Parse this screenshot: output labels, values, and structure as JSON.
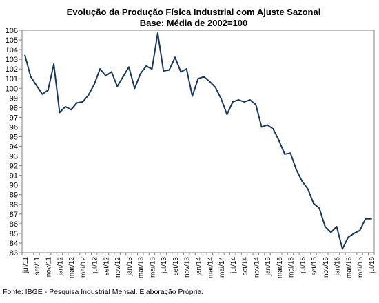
{
  "chart_data": {
    "type": "line",
    "title": "Evolução da Produção Física Industrial com Ajuste Sazonal",
    "subtitle": "Base: Média de 2002=100",
    "xlabel": "",
    "ylabel": "",
    "ylim": [
      83,
      106
    ],
    "y_ticks": [
      83,
      84,
      85,
      86,
      87,
      88,
      89,
      90,
      91,
      92,
      93,
      94,
      95,
      96,
      97,
      98,
      99,
      100,
      101,
      102,
      103,
      104,
      105,
      106
    ],
    "grid": false,
    "legend": "none",
    "x": [
      "jul/11",
      "ago/11",
      "set/11",
      "out/11",
      "nov/11",
      "dez/11",
      "jan/12",
      "fev/12",
      "mar/12",
      "abr/12",
      "mai/12",
      "jun/12",
      "jul/12",
      "ago/12",
      "set/12",
      "out/12",
      "nov/12",
      "dez/12",
      "jan/13",
      "fev/13",
      "mar/13",
      "abr/13",
      "mai/13",
      "jun/13",
      "jul/13",
      "ago/13",
      "set/13",
      "out/13",
      "nov/13",
      "dez/13",
      "jan/14",
      "fev/14",
      "mar/14",
      "abr/14",
      "mai/14",
      "jun/14",
      "jul/14",
      "ago/14",
      "set/14",
      "out/14",
      "nov/14",
      "dez/14",
      "jan/15",
      "fev/15",
      "mar/15",
      "abr/15",
      "mai/15",
      "jun/15",
      "jul/15",
      "ago/15",
      "set/15",
      "out/15",
      "nov/15",
      "dez/15",
      "jan/16",
      "fev/16",
      "mar/16",
      "abr/16",
      "mai/16",
      "jun/16",
      "jul/16"
    ],
    "x_tick_labels": [
      "jul/11",
      "set/11",
      "nov/11",
      "jan/12",
      "mar/12",
      "mai/12",
      "jul/12",
      "set/12",
      "nov/12",
      "jan/13",
      "mar/13",
      "mai/13",
      "jul/13",
      "set/13",
      "nov/13",
      "jan/14",
      "mar/14",
      "mai/14",
      "jul/14",
      "set/14",
      "nov/14",
      "jan/15",
      "mar/15",
      "mai/15",
      "jul/15",
      "set/15",
      "nov/15",
      "jan/16",
      "mar/16",
      "mai/16",
      "jul/16"
    ],
    "series": [
      {
        "values": [
          103.4,
          101.2,
          100.3,
          99.4,
          99.8,
          102.5,
          97.5,
          98.1,
          97.8,
          98.5,
          98.6,
          99.3,
          100.4,
          102.0,
          101.3,
          101.7,
          100.2,
          101.2,
          102.2,
          100.0,
          101.5,
          102.3,
          102.0,
          105.7,
          101.8,
          101.9,
          103.2,
          101.7,
          102.0,
          99.2,
          101.0,
          101.2,
          100.7,
          100.1,
          98.9,
          97.3,
          98.6,
          98.8,
          98.6,
          98.8,
          98.3,
          96.0,
          96.2,
          95.8,
          94.6,
          93.2,
          93.3,
          91.6,
          90.4,
          89.6,
          88.1,
          87.6,
          85.7,
          85.1,
          85.7,
          83.4,
          84.6,
          85.0,
          85.3,
          86.5,
          86.5
        ],
        "color": "#17375e"
      }
    ]
  },
  "footer": {
    "source": "Fonte: IBGE - Pesquisa Industrial Mensal. Elaboração Própria."
  }
}
